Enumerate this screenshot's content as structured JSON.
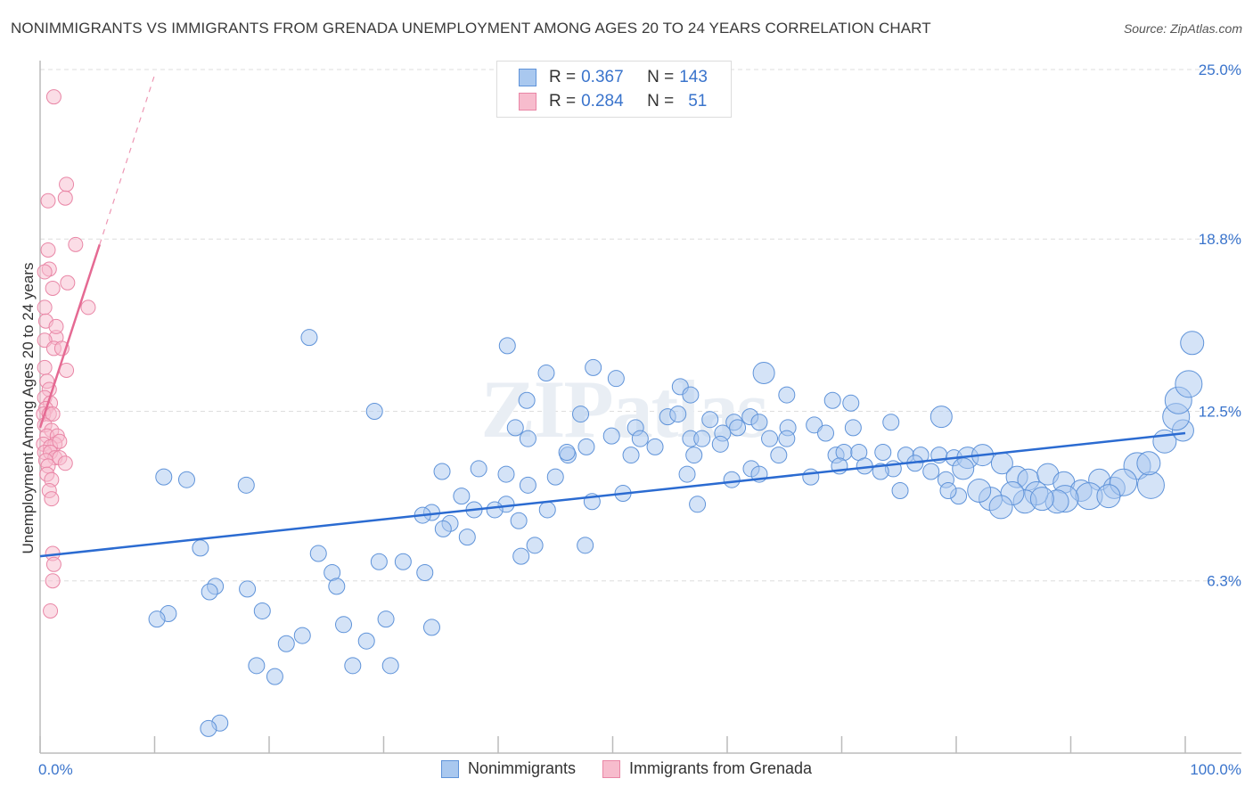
{
  "title": "NONIMMIGRANTS VS IMMIGRANTS FROM GRENADA UNEMPLOYMENT AMONG AGES 20 TO 24 YEARS CORRELATION CHART",
  "source": "Source: ZipAtlas.com",
  "watermark": "ZIPatlas",
  "colors": {
    "blue_fill": "#a9c8ef",
    "blue_stroke": "#5f93d9",
    "blue_line": "#2b6bd1",
    "pink_fill": "#f7bccd",
    "pink_stroke": "#e986a6",
    "pink_line": "#e56a93",
    "grid": "#dedede",
    "tick_label": "#3a74cc"
  },
  "stats_box": {
    "rows": [
      {
        "r_label": "R = ",
        "r_value": "0.367",
        "n_label": "N = ",
        "n_value": "143",
        "series": "blue"
      },
      {
        "r_label": "R = ",
        "r_value": "0.284",
        "n_label": "N = ",
        "n_value": "51",
        "series": "pink"
      }
    ]
  },
  "legend": [
    {
      "label": "Nonimmigrants",
      "series": "blue"
    },
    {
      "label": "Immigrants from Grenada",
      "series": "pink"
    }
  ],
  "chart_data": {
    "type": "scatter",
    "title": "NONIMMIGRANTS VS IMMIGRANTS FROM GRENADA UNEMPLOYMENT AMONG AGES 20 TO 24 YEARS CORRELATION CHART",
    "xlabel": "",
    "ylabel": "Unemployment Among Ages 20 to 24 years",
    "xlim": [
      0,
      100
    ],
    "ylim": [
      0,
      25.0
    ],
    "x_tick_labels": [
      "0.0%",
      "100.0%"
    ],
    "y_ticks": [
      6.3,
      12.5,
      18.8,
      25.0
    ],
    "y_tick_labels": [
      "6.3%",
      "12.5%",
      "18.8%",
      "25.0%"
    ],
    "grid": true,
    "legend_position": "bottom-center",
    "series": [
      {
        "name": "Nonimmigrants",
        "color": "blue",
        "trend": {
          "x": [
            0,
            100
          ],
          "y": [
            7.2,
            11.7
          ]
        },
        "points": [
          [
            23.5,
            15.2,
            9
          ],
          [
            40.8,
            14.9,
            9
          ],
          [
            44.2,
            13.9,
            9
          ],
          [
            48.3,
            14.1,
            9
          ],
          [
            50.3,
            13.7,
            9
          ],
          [
            55.9,
            13.4,
            9
          ],
          [
            56.8,
            13.1,
            9
          ],
          [
            63.2,
            13.9,
            12
          ],
          [
            65.2,
            13.1,
            9
          ],
          [
            69.2,
            12.9,
            9
          ],
          [
            70.8,
            12.8,
            9
          ],
          [
            29.2,
            12.5,
            9
          ],
          [
            42.5,
            12.9,
            9
          ],
          [
            47.2,
            12.4,
            9
          ],
          [
            41.5,
            11.9,
            9
          ],
          [
            52.0,
            11.9,
            9
          ],
          [
            54.8,
            12.3,
            9
          ],
          [
            55.7,
            12.4,
            9
          ],
          [
            58.5,
            12.2,
            9
          ],
          [
            60.6,
            12.1,
            9
          ],
          [
            62.0,
            12.3,
            9
          ],
          [
            62.8,
            12.1,
            9
          ],
          [
            59.6,
            11.7,
            9
          ],
          [
            60.9,
            11.9,
            9
          ],
          [
            65.3,
            11.9,
            9
          ],
          [
            67.6,
            12.0,
            9
          ],
          [
            68.6,
            11.7,
            9
          ],
          [
            71.0,
            11.9,
            9
          ],
          [
            74.3,
            12.1,
            9
          ],
          [
            78.7,
            12.3,
            12
          ],
          [
            42.6,
            11.5,
            9
          ],
          [
            49.9,
            11.6,
            9
          ],
          [
            52.4,
            11.5,
            9
          ],
          [
            56.8,
            11.5,
            9
          ],
          [
            57.8,
            11.5,
            9
          ],
          [
            59.4,
            11.3,
            9
          ],
          [
            63.7,
            11.5,
            9
          ],
          [
            65.2,
            11.5,
            9
          ],
          [
            53.7,
            11.2,
            9
          ],
          [
            47.7,
            11.2,
            9
          ],
          [
            46.1,
            10.9,
            9
          ],
          [
            51.6,
            10.9,
            9
          ],
          [
            57.1,
            10.9,
            9
          ],
          [
            64.5,
            10.9,
            9
          ],
          [
            69.5,
            10.9,
            9
          ],
          [
            70.2,
            11.0,
            9
          ],
          [
            71.5,
            11.0,
            9
          ],
          [
            73.6,
            11.0,
            9
          ],
          [
            75.6,
            10.9,
            9
          ],
          [
            76.9,
            10.9,
            9
          ],
          [
            78.5,
            10.9,
            9
          ],
          [
            79.8,
            10.8,
            9
          ],
          [
            81.0,
            10.8,
            12
          ],
          [
            82.3,
            10.9,
            12
          ],
          [
            84.0,
            10.6,
            12
          ],
          [
            46.0,
            11.0,
            9
          ],
          [
            35.1,
            10.3,
            9
          ],
          [
            38.3,
            10.4,
            9
          ],
          [
            40.7,
            10.2,
            9
          ],
          [
            45.0,
            10.1,
            9
          ],
          [
            56.5,
            10.2,
            9
          ],
          [
            60.4,
            10.0,
            9
          ],
          [
            62.1,
            10.4,
            9
          ],
          [
            69.8,
            10.5,
            9
          ],
          [
            72.0,
            10.5,
            9
          ],
          [
            74.5,
            10.4,
            9
          ],
          [
            76.4,
            10.6,
            9
          ],
          [
            77.8,
            10.3,
            9
          ],
          [
            79.1,
            10.0,
            9
          ],
          [
            80.6,
            10.4,
            12
          ],
          [
            85.3,
            10.1,
            12
          ],
          [
            86.3,
            10.0,
            12
          ],
          [
            88.0,
            10.2,
            12
          ],
          [
            89.4,
            9.9,
            12
          ],
          [
            90.9,
            9.6,
            12
          ],
          [
            92.5,
            10.0,
            12
          ],
          [
            93.8,
            9.7,
            12
          ],
          [
            95.8,
            10.5,
            15
          ],
          [
            97.0,
            9.8,
            15
          ],
          [
            98.2,
            11.4,
            13
          ],
          [
            99.8,
            11.8,
            12
          ],
          [
            99.2,
            12.3,
            15
          ],
          [
            99.4,
            12.9,
            15
          ],
          [
            100.3,
            13.5,
            15
          ],
          [
            100.6,
            15.0,
            13
          ],
          [
            96.8,
            10.6,
            13
          ],
          [
            94.6,
            9.9,
            15
          ],
          [
            91.6,
            9.4,
            15
          ],
          [
            89.5,
            9.3,
            15
          ],
          [
            88.8,
            9.2,
            13
          ],
          [
            87.0,
            9.5,
            13
          ],
          [
            86.0,
            9.2,
            13
          ],
          [
            84.9,
            9.5,
            13
          ],
          [
            83.0,
            9.3,
            13
          ],
          [
            83.9,
            9.0,
            13
          ],
          [
            82.0,
            9.6,
            13
          ],
          [
            80.2,
            9.4,
            9
          ],
          [
            87.5,
            9.3,
            13
          ],
          [
            93.3,
            9.4,
            13
          ],
          [
            79.3,
            9.6,
            9
          ],
          [
            75.1,
            9.6,
            9
          ],
          [
            73.4,
            10.3,
            9
          ],
          [
            67.3,
            10.1,
            9
          ],
          [
            62.8,
            10.2,
            9
          ],
          [
            57.4,
            9.1,
            9
          ],
          [
            50.9,
            9.5,
            9
          ],
          [
            48.2,
            9.2,
            9
          ],
          [
            42.6,
            9.8,
            9
          ],
          [
            40.7,
            9.1,
            9
          ],
          [
            39.7,
            8.9,
            9
          ],
          [
            36.8,
            9.4,
            9
          ],
          [
            34.2,
            8.8,
            9
          ],
          [
            35.8,
            8.4,
            9
          ],
          [
            37.9,
            8.9,
            9
          ],
          [
            41.8,
            8.5,
            9
          ],
          [
            44.3,
            8.9,
            9
          ],
          [
            35.2,
            8.2,
            9
          ],
          [
            37.3,
            7.9,
            9
          ],
          [
            33.4,
            8.7,
            9
          ],
          [
            43.2,
            7.6,
            9
          ],
          [
            42.0,
            7.2,
            9
          ],
          [
            47.6,
            7.6,
            9
          ],
          [
            24.3,
            7.3,
            9
          ],
          [
            31.7,
            7.0,
            9
          ],
          [
            29.6,
            7.0,
            9
          ],
          [
            25.5,
            6.6,
            9
          ],
          [
            33.6,
            6.6,
            9
          ],
          [
            12.8,
            10.0,
            9
          ],
          [
            18.0,
            9.8,
            9
          ],
          [
            14.0,
            7.5,
            9
          ],
          [
            10.8,
            10.1,
            9
          ],
          [
            15.3,
            6.1,
            9
          ],
          [
            25.9,
            6.1,
            9
          ],
          [
            30.2,
            4.9,
            9
          ],
          [
            34.2,
            4.6,
            9
          ],
          [
            30.6,
            3.2,
            9
          ],
          [
            18.1,
            6.0,
            9
          ],
          [
            14.8,
            5.9,
            9
          ],
          [
            19.4,
            5.2,
            9
          ],
          [
            18.9,
            3.2,
            9
          ],
          [
            11.2,
            5.1,
            9
          ],
          [
            26.5,
            4.7,
            9
          ],
          [
            22.9,
            4.3,
            9
          ],
          [
            21.5,
            4.0,
            9
          ],
          [
            28.5,
            4.1,
            9
          ],
          [
            27.3,
            3.2,
            9
          ],
          [
            20.5,
            2.8,
            9
          ],
          [
            15.7,
            1.1,
            9
          ],
          [
            14.7,
            0.9,
            9
          ],
          [
            10.2,
            4.9,
            9
          ]
        ]
      },
      {
        "name": "Immigrants from Grenada",
        "color": "pink",
        "trend": {
          "x": [
            0,
            5.2
          ],
          "y": [
            11.9,
            18.6
          ]
        },
        "trend_extension": {
          "x": [
            5.2,
            10.0
          ],
          "y": [
            18.6,
            24.8
          ]
        },
        "points": [
          [
            1.2,
            24.0,
            8
          ],
          [
            2.3,
            20.8,
            8
          ],
          [
            2.2,
            20.3,
            8
          ],
          [
            0.7,
            20.2,
            8
          ],
          [
            3.1,
            18.6,
            8
          ],
          [
            0.7,
            18.4,
            8
          ],
          [
            0.8,
            17.7,
            8
          ],
          [
            0.4,
            17.6,
            8
          ],
          [
            2.4,
            17.2,
            8
          ],
          [
            1.1,
            17.0,
            8
          ],
          [
            4.2,
            16.3,
            8
          ],
          [
            0.4,
            16.3,
            8
          ],
          [
            0.5,
            15.8,
            8
          ],
          [
            1.4,
            15.2,
            8
          ],
          [
            0.4,
            15.1,
            8
          ],
          [
            1.2,
            14.8,
            8
          ],
          [
            1.9,
            14.8,
            8
          ],
          [
            0.4,
            14.1,
            8
          ],
          [
            2.3,
            14.0,
            8
          ],
          [
            0.6,
            13.6,
            8
          ],
          [
            0.8,
            13.3,
            8
          ],
          [
            0.4,
            13.0,
            8
          ],
          [
            0.9,
            12.8,
            8
          ],
          [
            0.5,
            12.6,
            8
          ],
          [
            0.3,
            12.4,
            8
          ],
          [
            0.8,
            12.4,
            8
          ],
          [
            1.1,
            12.4,
            8
          ],
          [
            0.4,
            12.0,
            8
          ],
          [
            1.0,
            11.8,
            8
          ],
          [
            0.6,
            11.6,
            8
          ],
          [
            1.5,
            11.6,
            8
          ],
          [
            0.3,
            11.3,
            8
          ],
          [
            1.3,
            11.3,
            8
          ],
          [
            0.9,
            11.2,
            8
          ],
          [
            1.7,
            11.4,
            8
          ],
          [
            0.4,
            11.0,
            8
          ],
          [
            0.9,
            11.0,
            8
          ],
          [
            1.3,
            10.8,
            8
          ],
          [
            0.5,
            10.7,
            8
          ],
          [
            1.7,
            10.8,
            8
          ],
          [
            0.7,
            10.5,
            8
          ],
          [
            2.2,
            10.6,
            8
          ],
          [
            0.6,
            10.2,
            8
          ],
          [
            1.0,
            10.0,
            8
          ],
          [
            0.8,
            9.6,
            8
          ],
          [
            1.0,
            9.3,
            8
          ],
          [
            1.1,
            7.3,
            8
          ],
          [
            1.2,
            6.9,
            8
          ],
          [
            1.1,
            6.3,
            8
          ],
          [
            0.9,
            5.2,
            8
          ],
          [
            1.4,
            15.6,
            8
          ]
        ]
      }
    ]
  }
}
